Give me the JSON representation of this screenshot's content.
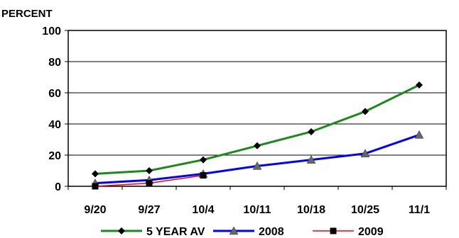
{
  "chart_data": {
    "type": "line",
    "ylabel": "PERCENT",
    "ylim": [
      0,
      100
    ],
    "yticks": [
      0,
      20,
      40,
      60,
      80,
      100
    ],
    "categories": [
      "9/20",
      "9/27",
      "10/4",
      "10/11",
      "10/18",
      "10/25",
      "11/1"
    ],
    "grid": "horizontal",
    "legend_position": "bottom",
    "series": [
      {
        "name": "5 YEAR AV",
        "color": "#1a8a1a",
        "marker": "diamond",
        "values": [
          8,
          10,
          17,
          26,
          35,
          48,
          65
        ]
      },
      {
        "name": "2008",
        "color": "#0000ff",
        "marker": "triangle",
        "values": [
          2,
          4,
          8,
          13,
          17,
          21,
          33
        ]
      },
      {
        "name": "2009",
        "color": "#ff0000",
        "marker": "square",
        "values": [
          0,
          2,
          7,
          null,
          null,
          null,
          null
        ]
      }
    ]
  }
}
